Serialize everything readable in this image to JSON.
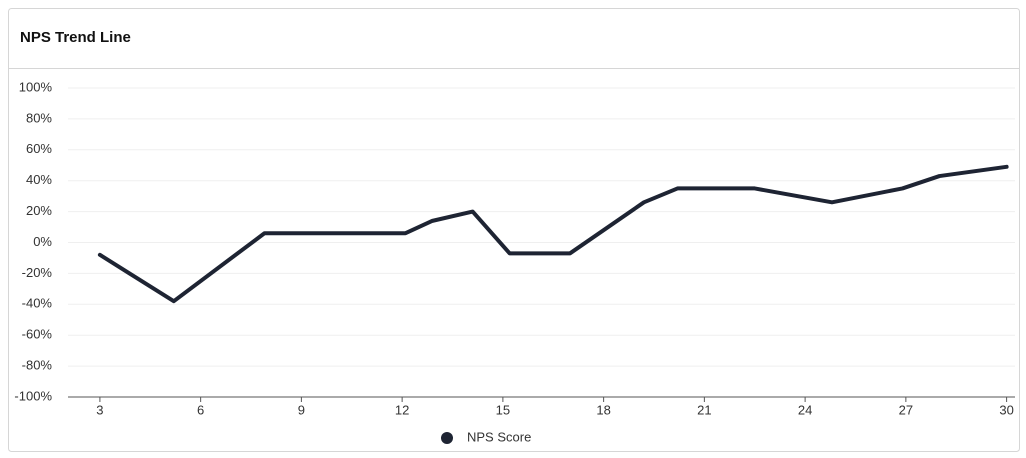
{
  "chart_data": {
    "type": "line",
    "title": "NPS Trend Line",
    "x": [
      3,
      5.2,
      7.9,
      12.1,
      12.9,
      14.1,
      15.2,
      17,
      19.2,
      20.2,
      22.5,
      24.8,
      26.9,
      28,
      30
    ],
    "series": [
      {
        "name": "NPS Score",
        "color": "#1e2433",
        "values": [
          -8,
          -38,
          6,
          6,
          14,
          20,
          -7,
          -7,
          26,
          35,
          35,
          26,
          35,
          43,
          49
        ]
      }
    ],
    "xlim": [
      2.05,
      30.25
    ],
    "xticks": [
      3,
      6,
      9,
      12,
      15,
      18,
      21,
      24,
      27,
      30
    ],
    "ylim": [
      -100,
      100
    ],
    "yticks": [
      {
        "value": -100,
        "label": "-100%"
      },
      {
        "value": -80,
        "label": "-80%"
      },
      {
        "value": -60,
        "label": "-60%"
      },
      {
        "value": -40,
        "label": "-40%"
      },
      {
        "value": -20,
        "label": "-20%"
      },
      {
        "value": 0,
        "label": "0%"
      },
      {
        "value": 20,
        "label": "20%"
      },
      {
        "value": 40,
        "label": "40%"
      },
      {
        "value": 60,
        "label": "60%"
      },
      {
        "value": 80,
        "label": "80%"
      },
      {
        "value": 100,
        "label": "100%"
      }
    ],
    "grid": true
  }
}
